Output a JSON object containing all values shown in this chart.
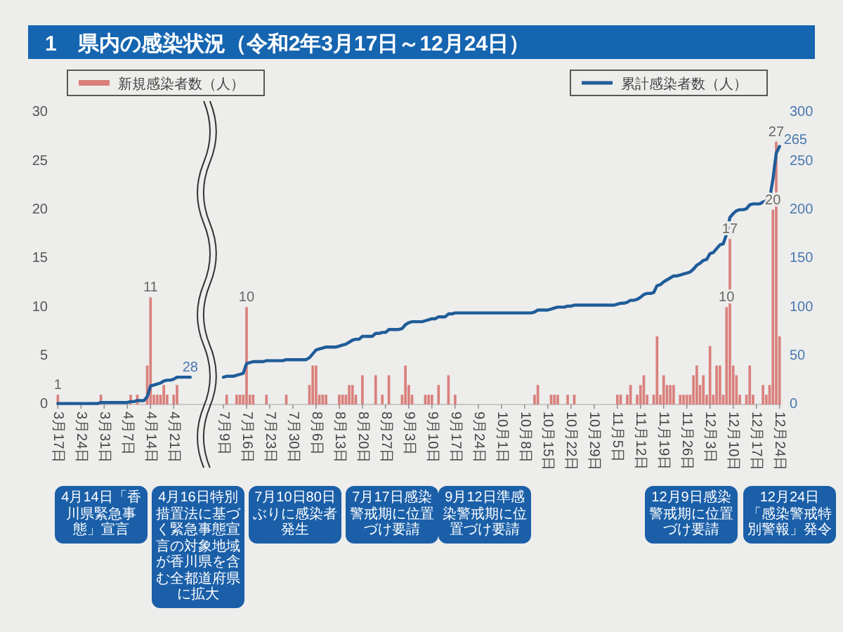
{
  "chart_data": {
    "type": "bar",
    "title": "1　県内の感染状況（令和2年3月17日～12月24日）",
    "categories": [
      "3月17日",
      null,
      null,
      null,
      null,
      null,
      null,
      "3月24日",
      null,
      null,
      null,
      null,
      null,
      null,
      "3月31日",
      null,
      null,
      null,
      null,
      null,
      null,
      "4月7日",
      null,
      null,
      null,
      null,
      null,
      null,
      "4月14日",
      null,
      null,
      null,
      null,
      null,
      null,
      "4月21日",
      null,
      null,
      null,
      null,
      null,
      null,
      null,
      null,
      null,
      null,
      null,
      null,
      null,
      null,
      "7月9日",
      null,
      null,
      null,
      null,
      null,
      null,
      "7月16日",
      null,
      null,
      null,
      null,
      null,
      null,
      "7月23日",
      null,
      null,
      null,
      null,
      null,
      null,
      "7月30日",
      null,
      null,
      null,
      null,
      null,
      null,
      "8月6日",
      null,
      null,
      null,
      null,
      null,
      null,
      "8月13日",
      null,
      null,
      null,
      null,
      null,
      null,
      "8月20日",
      null,
      null,
      null,
      null,
      null,
      null,
      "8月27日",
      null,
      null,
      null,
      null,
      null,
      null,
      "9月3日",
      null,
      null,
      null,
      null,
      null,
      null,
      "9月10日",
      null,
      null,
      null,
      null,
      null,
      null,
      "9月17日",
      null,
      null,
      null,
      null,
      null,
      null,
      "9月24日",
      null,
      null,
      null,
      null,
      null,
      null,
      "10月1日",
      null,
      null,
      null,
      null,
      null,
      null,
      "10月8日",
      null,
      null,
      null,
      null,
      null,
      null,
      "10月15日",
      null,
      null,
      null,
      null,
      null,
      null,
      "10月22日",
      null,
      null,
      null,
      null,
      null,
      null,
      "10月29日",
      null,
      null,
      null,
      null,
      null,
      null,
      "11月5日",
      null,
      null,
      null,
      null,
      null,
      null,
      "11月12日",
      null,
      null,
      null,
      null,
      null,
      null,
      "11月19日",
      null,
      null,
      null,
      null,
      null,
      null,
      "11月26日",
      null,
      null,
      null,
      null,
      null,
      null,
      "12月3日",
      null,
      null,
      null,
      null,
      null,
      null,
      "12月10日",
      null,
      null,
      null,
      null,
      null,
      null,
      "12月17日",
      null,
      null,
      null,
      null,
      null,
      null,
      "12月24日"
    ],
    "series": [
      {
        "name": "新規感染者数（人）",
        "type": "bar",
        "color": "#d9807c",
        "values": [
          1,
          0,
          0,
          0,
          0,
          0,
          0,
          0,
          0,
          0,
          0,
          0,
          0,
          1,
          0,
          0,
          0,
          0,
          0,
          0,
          0,
          0,
          1,
          0,
          1,
          0,
          0,
          4,
          11,
          1,
          1,
          1,
          2,
          1,
          0,
          1,
          2,
          0,
          0,
          0,
          0,
          null,
          null,
          null,
          null,
          null,
          null,
          null,
          null,
          null,
          0,
          1,
          0,
          0,
          1,
          1,
          1,
          10,
          1,
          1,
          0,
          0,
          0,
          1,
          0,
          0,
          0,
          0,
          0,
          1,
          0,
          0,
          0,
          0,
          0,
          0,
          2,
          4,
          4,
          1,
          1,
          1,
          0,
          0,
          0,
          1,
          1,
          1,
          2,
          2,
          1,
          0,
          3,
          0,
          0,
          0,
          3,
          0,
          1,
          0,
          3,
          0,
          0,
          0,
          1,
          4,
          2,
          1,
          0,
          0,
          0,
          1,
          1,
          1,
          0,
          2,
          0,
          0,
          3,
          0,
          1,
          0,
          0,
          0,
          0,
          0,
          0,
          0,
          0,
          0,
          0,
          0,
          0,
          0,
          0,
          0,
          0,
          0,
          0,
          0,
          0,
          0,
          0,
          0,
          1,
          2,
          0,
          0,
          0,
          1,
          1,
          1,
          0,
          0,
          1,
          0,
          1,
          0,
          0,
          0,
          0,
          0,
          0,
          0,
          0,
          0,
          0,
          0,
          0,
          1,
          1,
          0,
          1,
          2,
          0,
          1,
          2,
          3,
          1,
          0,
          1,
          7,
          1,
          3,
          2,
          2,
          2,
          0,
          1,
          1,
          1,
          1,
          3,
          4,
          2,
          3,
          1,
          6,
          1,
          4,
          4,
          1,
          10,
          17,
          4,
          3,
          1,
          0,
          1,
          4,
          1,
          0,
          0,
          2,
          1,
          2,
          20,
          27,
          7
        ],
        "value_labels": [
          "1",
          null,
          null,
          null,
          null,
          null,
          null,
          null,
          null,
          null,
          null,
          null,
          null,
          null,
          null,
          null,
          null,
          null,
          null,
          null,
          null,
          null,
          null,
          null,
          null,
          null,
          null,
          null,
          "11",
          null,
          null,
          null,
          null,
          null,
          null,
          null,
          null,
          null,
          null,
          null,
          null,
          null,
          null,
          null,
          null,
          null,
          null,
          null,
          null,
          null,
          null,
          null,
          null,
          null,
          null,
          null,
          null,
          "10",
          null,
          null,
          null,
          null,
          null,
          null,
          null,
          null,
          null,
          null,
          null,
          null,
          null,
          null,
          null,
          null,
          null,
          null,
          null,
          null,
          null,
          null,
          null,
          null,
          null,
          null,
          null,
          null,
          null,
          null,
          null,
          null,
          null,
          null,
          null,
          null,
          null,
          null,
          null,
          null,
          null,
          null,
          null,
          null,
          null,
          null,
          null,
          null,
          null,
          null,
          null,
          null,
          null,
          null,
          null,
          null,
          null,
          null,
          null,
          null,
          null,
          null,
          null,
          null,
          null,
          null,
          null,
          null,
          null,
          null,
          null,
          null,
          null,
          null,
          null,
          null,
          null,
          null,
          null,
          null,
          null,
          null,
          null,
          null,
          null,
          null,
          null,
          null,
          null,
          null,
          null,
          null,
          null,
          null,
          null,
          null,
          null,
          null,
          null,
          null,
          null,
          null,
          null,
          null,
          null,
          null,
          null,
          null,
          null,
          null,
          null,
          null,
          null,
          null,
          null,
          null,
          null,
          null,
          null,
          null,
          null,
          null,
          null,
          null,
          null,
          null,
          null,
          null,
          null,
          null,
          null,
          null,
          null,
          null,
          null,
          null,
          null,
          null,
          null,
          null,
          null,
          null,
          null,
          null,
          "10",
          "17",
          null,
          null,
          null,
          null,
          null,
          null,
          null,
          null,
          null,
          null,
          null,
          null,
          "20",
          "27",
          null
        ]
      },
      {
        "name": "累計感染者数（人）",
        "type": "line",
        "axis": "y2",
        "color": "#1f5c99",
        "values": [
          1,
          1,
          1,
          1,
          1,
          1,
          1,
          1,
          1,
          1,
          1,
          1,
          1,
          2,
          2,
          2,
          2,
          2,
          2,
          2,
          2,
          2,
          3,
          3,
          4,
          4,
          4,
          8,
          19,
          20,
          21,
          22,
          24,
          25,
          25,
          26,
          28,
          28,
          28,
          28,
          28,
          null,
          null,
          null,
          null,
          null,
          null,
          null,
          null,
          null,
          28,
          29,
          29,
          29,
          30,
          31,
          32,
          42,
          43,
          44,
          44,
          44,
          44,
          45,
          45,
          45,
          45,
          45,
          45,
          46,
          46,
          46,
          46,
          46,
          46,
          46,
          48,
          52,
          56,
          57,
          58,
          59,
          59,
          59,
          59,
          60,
          61,
          62,
          64,
          66,
          67,
          67,
          70,
          70,
          70,
          70,
          73,
          73,
          74,
          74,
          77,
          77,
          77,
          77,
          78,
          82,
          84,
          85,
          85,
          85,
          85,
          86,
          87,
          88,
          88,
          90,
          90,
          90,
          93,
          93,
          94,
          94,
          94,
          94,
          94,
          94,
          94,
          94,
          94,
          94,
          94,
          94,
          94,
          94,
          94,
          94,
          94,
          94,
          94,
          94,
          94,
          94,
          94,
          94,
          95,
          97,
          97,
          97,
          97,
          98,
          99,
          100,
          100,
          100,
          101,
          101,
          102,
          102,
          102,
          102,
          102,
          102,
          102,
          102,
          102,
          102,
          102,
          102,
          102,
          103,
          104,
          104,
          105,
          107,
          107,
          108,
          110,
          113,
          114,
          114,
          115,
          122,
          123,
          126,
          128,
          130,
          132,
          132,
          133,
          134,
          135,
          136,
          139,
          143,
          145,
          148,
          149,
          155,
          156,
          160,
          164,
          165,
          175,
          192,
          196,
          199,
          200,
          200,
          201,
          205,
          206,
          206,
          206,
          208,
          209,
          211,
          231,
          258,
          265
        ],
        "value_labels": [
          null,
          null,
          null,
          null,
          null,
          null,
          null,
          null,
          null,
          null,
          null,
          null,
          null,
          null,
          null,
          null,
          null,
          null,
          null,
          null,
          null,
          null,
          null,
          null,
          null,
          null,
          null,
          null,
          null,
          null,
          null,
          null,
          null,
          null,
          null,
          null,
          null,
          null,
          null,
          null,
          "28",
          null,
          null,
          null,
          null,
          null,
          null,
          null,
          null,
          null,
          null,
          null,
          null,
          null,
          null,
          null,
          null,
          null,
          null,
          null,
          null,
          null,
          null,
          null,
          null,
          null,
          null,
          null,
          null,
          null,
          null,
          null,
          null,
          null,
          null,
          null,
          null,
          null,
          null,
          null,
          null,
          null,
          null,
          null,
          null,
          null,
          null,
          null,
          null,
          null,
          null,
          null,
          null,
          null,
          null,
          null,
          null,
          null,
          null,
          null,
          null,
          null,
          null,
          null,
          null,
          null,
          null,
          null,
          null,
          null,
          null,
          null,
          null,
          null,
          null,
          null,
          null,
          null,
          null,
          null,
          null,
          null,
          null,
          null,
          null,
          null,
          null,
          null,
          null,
          null,
          null,
          null,
          null,
          null,
          null,
          null,
          null,
          null,
          null,
          null,
          null,
          null,
          null,
          null,
          null,
          null,
          null,
          null,
          null,
          null,
          null,
          null,
          null,
          null,
          null,
          null,
          null,
          null,
          null,
          null,
          null,
          null,
          null,
          null,
          null,
          null,
          null,
          null,
          null,
          null,
          null,
          null,
          null,
          null,
          null,
          null,
          null,
          null,
          null,
          null,
          null,
          null,
          null,
          null,
          null,
          null,
          null,
          null,
          null,
          null,
          null,
          null,
          null,
          null,
          null,
          null,
          null,
          null,
          null,
          null,
          null,
          null,
          null,
          null,
          null,
          null,
          null,
          null,
          null,
          null,
          null,
          null,
          null,
          null,
          null,
          null,
          null,
          null,
          "265"
        ]
      }
    ],
    "ylim": [
      0,
      30
    ],
    "yticks": [
      0,
      5,
      10,
      15,
      20,
      25,
      30
    ],
    "y2lim": [
      0,
      300
    ],
    "y2ticks": [
      0,
      50,
      100,
      150,
      200,
      250,
      300
    ],
    "legend": "top",
    "annotations": [
      "4月14日「香川県緊急事態」宣言",
      "4月16日特別措置法に基づく緊急事態宣言の対象地域が香川県を含む全都道府県に拡大",
      "7月10日80日ぶりに感染者発生",
      "7月17日感染警戒期に位置づけ要請",
      "9月12日準感染警戒期に位置づけ要請",
      "12月9日感染警戒期に位置づけ要請",
      "12月24日「感染警戒特別警報」発令"
    ]
  }
}
